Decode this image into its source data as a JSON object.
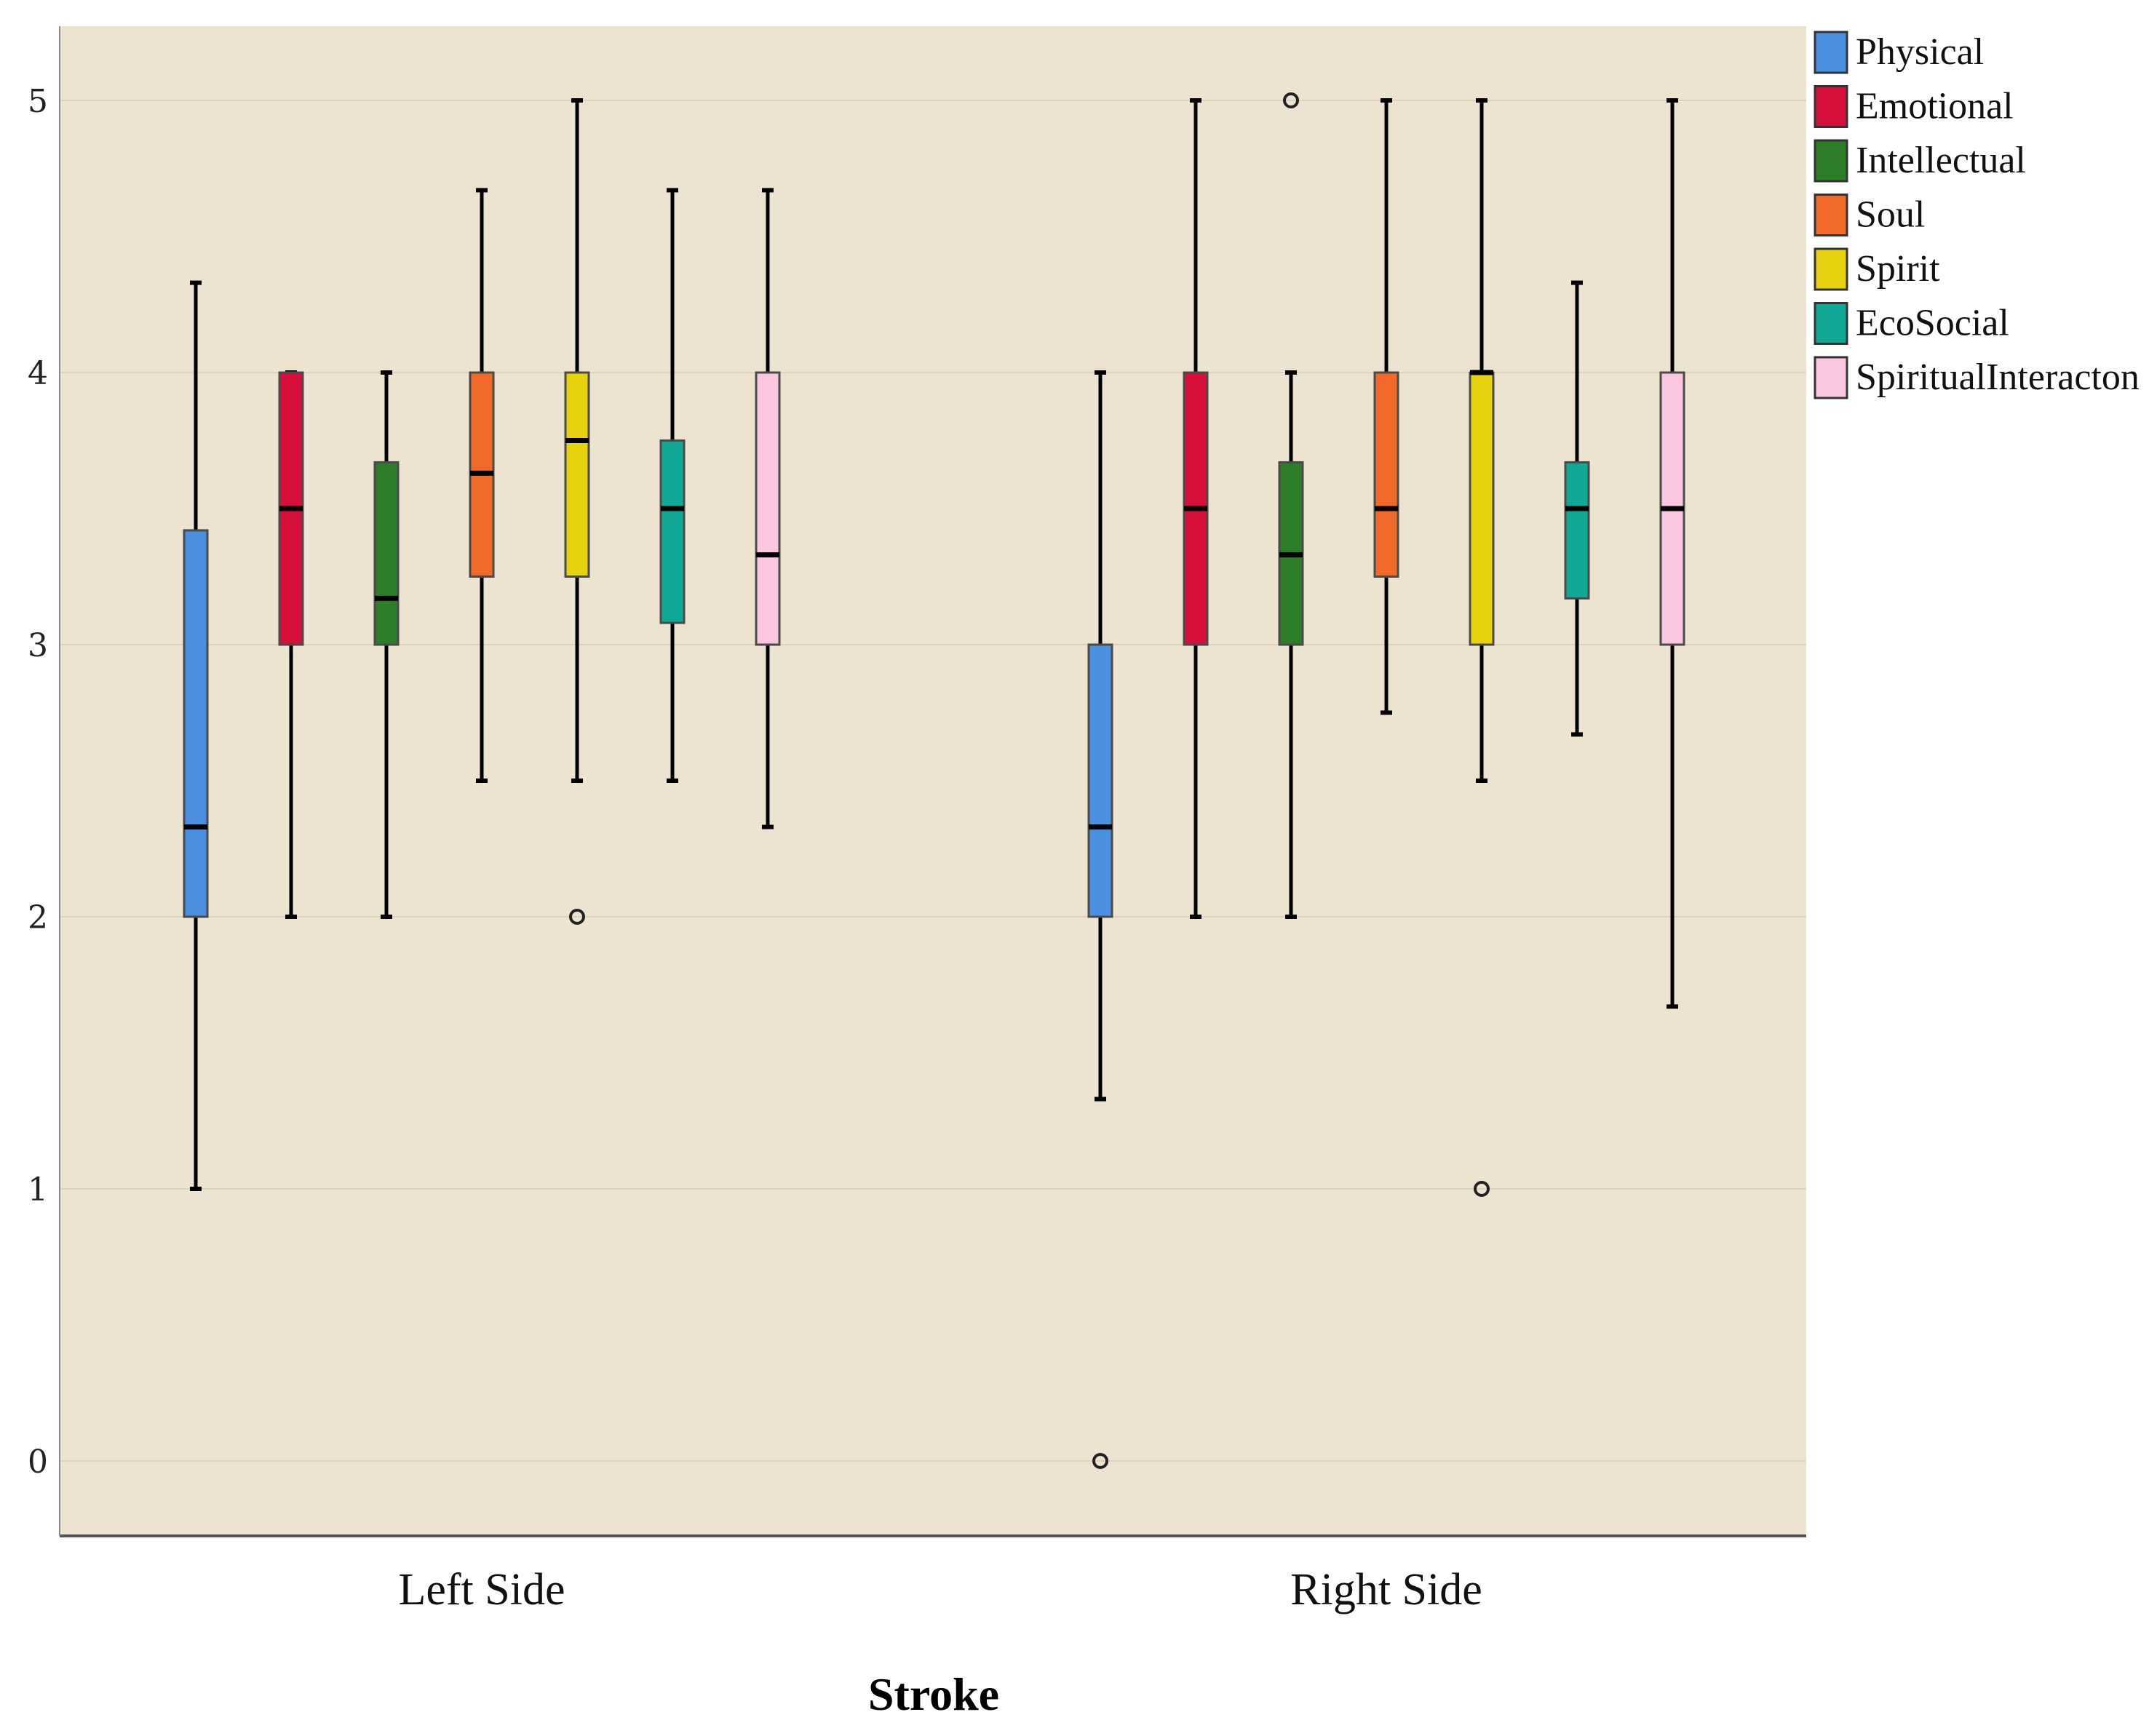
{
  "chart_data": {
    "type": "boxplot",
    "title": "",
    "xlabel": "Stroke",
    "ylabel": "",
    "ylim": [
      -0.25,
      5.3
    ],
    "yticks": [
      0,
      1,
      2,
      3,
      4,
      5
    ],
    "grid": true,
    "legend_position": "top-right",
    "background_color": "#ece4d0",
    "categories": [
      "Left Side",
      "Right Side"
    ],
    "series": [
      {
        "name": "Physical",
        "color": "#4a8fe0",
        "boxes": [
          {
            "min": 1.0,
            "q1": 2.0,
            "median": 2.33,
            "q3": 3.42,
            "max": 4.33,
            "outliers": []
          },
          {
            "min": 1.33,
            "q1": 2.0,
            "median": 2.33,
            "q3": 3.0,
            "max": 4.0,
            "outliers": [
              0
            ]
          }
        ]
      },
      {
        "name": "Emotional",
        "color": "#d6103a",
        "boxes": [
          {
            "min": 2.0,
            "q1": 3.0,
            "median": 3.5,
            "q3": 4.0,
            "max": 4.0,
            "outliers": []
          },
          {
            "min": 2.0,
            "q1": 3.0,
            "median": 3.5,
            "q3": 4.0,
            "max": 5.0,
            "outliers": []
          }
        ]
      },
      {
        "name": "Intellectual",
        "color": "#2e7d2a",
        "boxes": [
          {
            "min": 2.0,
            "q1": 3.0,
            "median": 3.17,
            "q3": 3.67,
            "max": 4.0,
            "outliers": []
          },
          {
            "min": 2.0,
            "q1": 3.0,
            "median": 3.33,
            "q3": 3.67,
            "max": 4.0,
            "outliers": [
              5
            ]
          }
        ]
      },
      {
        "name": "Soul",
        "color": "#f26a2a",
        "boxes": [
          {
            "min": 2.5,
            "q1": 3.25,
            "median": 3.63,
            "q3": 4.0,
            "max": 4.67,
            "outliers": []
          },
          {
            "min": 2.75,
            "q1": 3.25,
            "median": 3.5,
            "q3": 4.0,
            "max": 5.0,
            "outliers": []
          }
        ]
      },
      {
        "name": "Spirit",
        "color": "#e6d20f",
        "boxes": [
          {
            "min": 2.5,
            "q1": 3.25,
            "median": 3.75,
            "q3": 4.0,
            "max": 5.0,
            "outliers": [
              2
            ]
          },
          {
            "min": 2.5,
            "q1": 3.0,
            "median": 4.0,
            "q3": 4.0,
            "max": 5.0,
            "outliers": [
              1
            ]
          }
        ]
      },
      {
        "name": "EcoSocial",
        "color": "#12a896",
        "boxes": [
          {
            "min": 2.5,
            "q1": 3.08,
            "median": 3.5,
            "q3": 3.75,
            "max": 4.67,
            "outliers": []
          },
          {
            "min": 2.67,
            "q1": 3.17,
            "median": 3.5,
            "q3": 3.67,
            "max": 4.33,
            "outliers": []
          }
        ]
      },
      {
        "name": "SpiritualInteracton",
        "color": "#fbc6df",
        "boxes": [
          {
            "min": 2.33,
            "q1": 3.0,
            "median": 3.33,
            "q3": 4.0,
            "max": 4.67,
            "outliers": []
          },
          {
            "min": 1.67,
            "q1": 3.0,
            "median": 3.5,
            "q3": 4.0,
            "max": 5.0,
            "outliers": []
          }
        ]
      }
    ]
  }
}
